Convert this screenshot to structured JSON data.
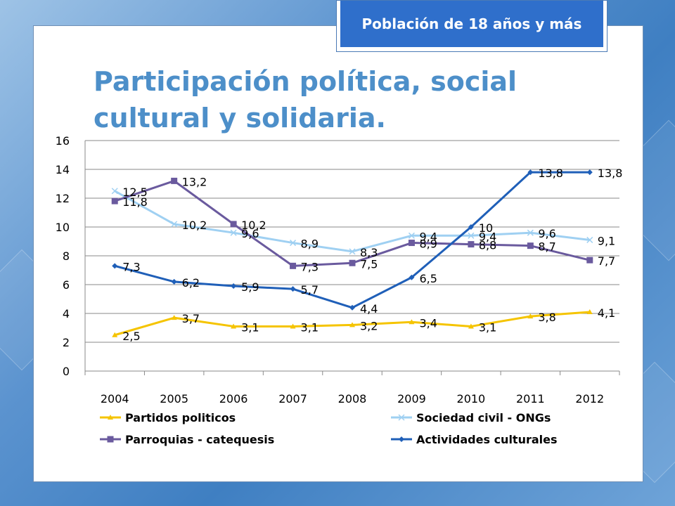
{
  "badge": {
    "text": "Población de 18 años y más"
  },
  "title": {
    "line1": "Participación política, social",
    "line2": "cultural y solidaria."
  },
  "chart_data": {
    "type": "line",
    "categories": [
      "2004",
      "2005",
      "2006",
      "2007",
      "2008",
      "2009",
      "2010",
      "2011",
      "2012"
    ],
    "ylim": [
      0,
      16
    ],
    "yticks": [
      0,
      2,
      4,
      6,
      8,
      10,
      12,
      14,
      16
    ],
    "grid": true,
    "legend": "bottom",
    "series": [
      {
        "name": "Partidos politicos",
        "color": "#f5c400",
        "marker": "triangle",
        "values": [
          2.5,
          3.7,
          3.1,
          3.1,
          3.2,
          3.4,
          3.1,
          3.8,
          4.1
        ],
        "labels": [
          "2,5",
          "3,7",
          "3,1",
          "3,1",
          "3,2",
          "3,4",
          "3,1",
          "3,8",
          "4,1"
        ]
      },
      {
        "name": "Sociedad civil - ONGs",
        "color": "#9fd0f2",
        "marker": "x",
        "values": [
          12.5,
          10.2,
          9.6,
          8.9,
          8.3,
          9.4,
          9.4,
          9.6,
          9.1
        ],
        "labels": [
          "12,5",
          "10,2",
          "9,6",
          "8,9",
          "8,3",
          "9,4",
          "9,4",
          "9,6",
          "9,1"
        ]
      },
      {
        "name": "Parroquias - catequesis",
        "color": "#6a5a9e",
        "marker": "square",
        "values": [
          11.8,
          13.2,
          10.2,
          7.3,
          7.5,
          8.9,
          8.8,
          8.7,
          7.7
        ],
        "labels": [
          "11,8",
          "13,2",
          "10,2",
          "7,3",
          "7,5",
          "8,9",
          "8,8",
          "8,7",
          "7,7"
        ]
      },
      {
        "name": "Actividades culturales",
        "color": "#1f5fb8",
        "marker": "diamond",
        "values": [
          7.3,
          6.2,
          5.9,
          5.7,
          4.4,
          6.5,
          10.0,
          13.8,
          13.8
        ],
        "labels": [
          "7,3",
          "6,2",
          "5,9",
          "5,7",
          "4,4",
          "6,5",
          "10",
          "13,8",
          "13,8"
        ]
      }
    ]
  }
}
